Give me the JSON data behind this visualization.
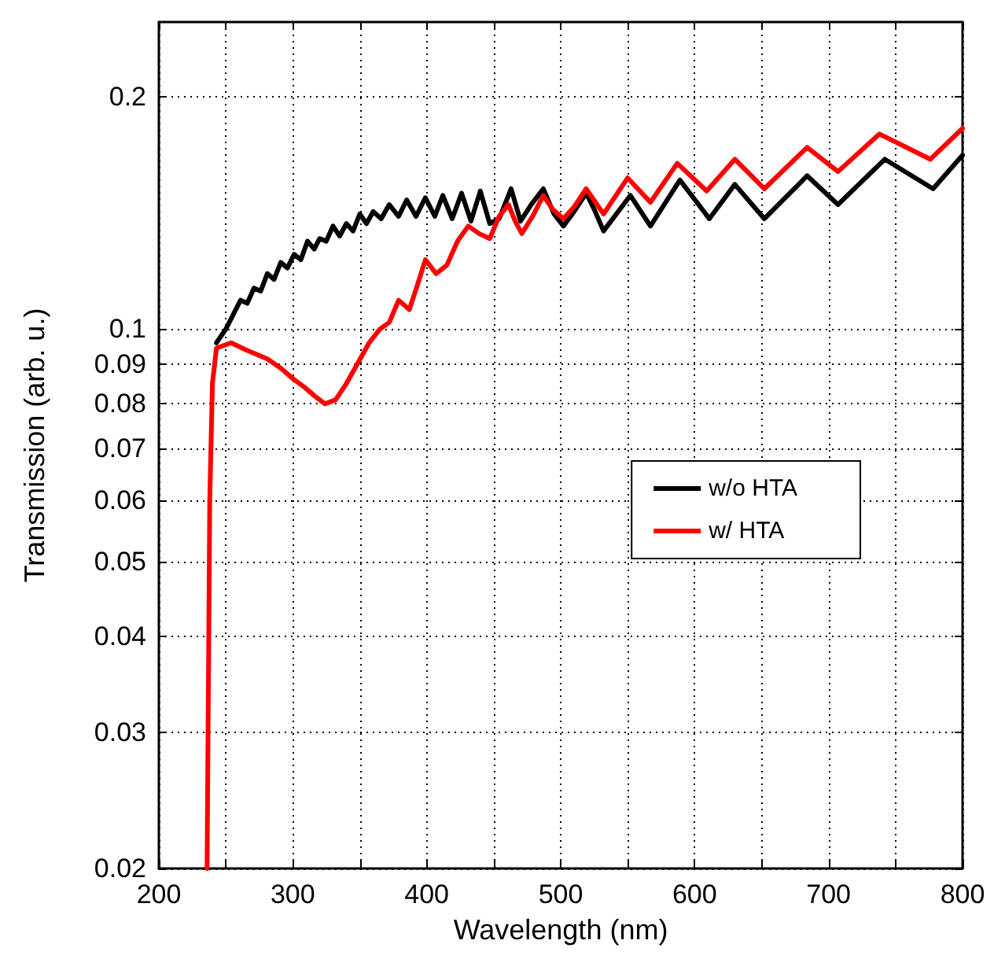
{
  "chart_data": {
    "type": "line",
    "xlabel": "Wavelength (nm)",
    "ylabel": "Transmission (arb. u.)",
    "xlim": [
      200,
      800
    ],
    "ylim": [
      0.02,
      0.25
    ],
    "log": "y",
    "grid": true,
    "legend": "right",
    "marker": "none",
    "line_style": "solid",
    "xticks": [
      200,
      {
        "value": 250,
        "label": null
      },
      300,
      {
        "value": 350,
        "label": null
      },
      400,
      {
        "value": 450,
        "label": null
      },
      500,
      {
        "value": 550,
        "label": null
      },
      600,
      {
        "value": 650,
        "label": null
      },
      700,
      {
        "value": 750,
        "label": null
      },
      800
    ],
    "yticks": [
      0.02,
      0.03,
      0.04,
      0.05,
      0.06,
      0.07,
      0.08,
      0.09,
      0.1,
      0.2
    ],
    "series": [
      {
        "name": "w/o HTA",
        "color": "#000000",
        "x": [
          243,
          250,
          255,
          261,
          266,
          271,
          276,
          281,
          286,
          291,
          296,
          301,
          306,
          311,
          316,
          320,
          325,
          330,
          335,
          340,
          345,
          350,
          355,
          360,
          366,
          372,
          379,
          385,
          392,
          399,
          406,
          412,
          419,
          426,
          433,
          440,
          447,
          454,
          463,
          470,
          478,
          487,
          495,
          502,
          510,
          519,
          525,
          532,
          552,
          567,
          589,
          611,
          630,
          652,
          684,
          707,
          742,
          778,
          800
        ],
        "values": [
          0.096,
          0.1,
          0.104,
          0.109,
          0.108,
          0.113,
          0.112,
          0.118,
          0.116,
          0.122,
          0.12,
          0.125,
          0.123,
          0.13,
          0.127,
          0.131,
          0.13,
          0.136,
          0.132,
          0.137,
          0.134,
          0.141,
          0.137,
          0.142,
          0.139,
          0.145,
          0.14,
          0.147,
          0.14,
          0.148,
          0.14,
          0.149,
          0.139,
          0.15,
          0.138,
          0.151,
          0.137,
          0.139,
          0.152,
          0.138,
          0.145,
          0.152,
          0.141,
          0.136,
          0.142,
          0.15,
          0.143,
          0.134,
          0.149,
          0.136,
          0.156,
          0.139,
          0.154,
          0.139,
          0.158,
          0.145,
          0.166,
          0.152,
          0.168
        ]
      },
      {
        "name": "w/ HTA",
        "color": "#ff0000",
        "x": [
          236,
          238,
          240,
          243,
          254,
          265,
          281,
          291,
          301,
          309,
          316,
          324,
          332,
          340,
          348,
          357,
          365,
          372,
          379,
          387,
          393,
          399,
          407,
          415,
          423,
          431,
          439,
          447,
          454,
          461,
          466,
          471,
          479,
          487,
          494,
          502,
          510,
          519,
          532,
          550,
          567,
          587,
          609,
          630,
          652,
          684,
          707,
          738,
          776,
          800
        ],
        "values": [
          0.02,
          0.06,
          0.085,
          0.0945,
          0.096,
          0.094,
          0.0915,
          0.089,
          0.086,
          0.084,
          0.082,
          0.08,
          0.081,
          0.085,
          0.09,
          0.096,
          0.1,
          0.102,
          0.109,
          0.106,
          0.114,
          0.123,
          0.118,
          0.121,
          0.13,
          0.136,
          0.133,
          0.131,
          0.14,
          0.145,
          0.138,
          0.133,
          0.14,
          0.149,
          0.143,
          0.139,
          0.144,
          0.152,
          0.141,
          0.157,
          0.146,
          0.164,
          0.151,
          0.166,
          0.152,
          0.172,
          0.16,
          0.179,
          0.166,
          0.182
        ]
      }
    ]
  }
}
